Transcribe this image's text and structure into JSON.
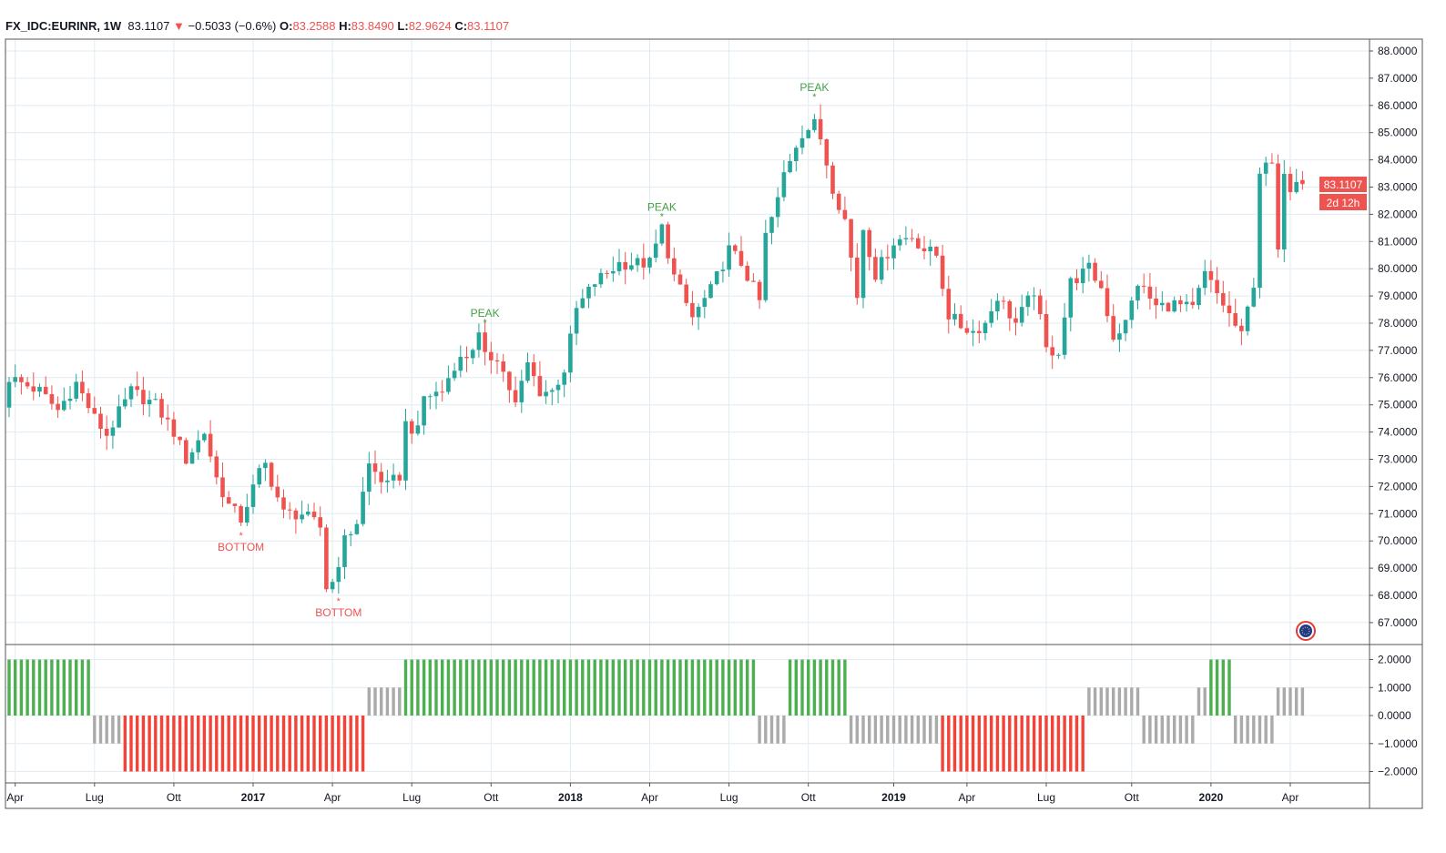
{
  "header": {
    "symbol": "FX_IDC:EURINR, 1W",
    "last": "83.1107",
    "change": "−0.5033 (−0.6%)",
    "o_label": "O:",
    "o": "83.2588",
    "h_label": "H:",
    "h": "83.8490",
    "l_label": "L:",
    "l": "82.9624",
    "c_label": "C:",
    "c": "83.1107"
  },
  "price_badge": "83.1107",
  "countdown_badge": "2d 12h",
  "colors": {
    "up": "#26a69a",
    "down": "#ef5350",
    "osc_green": "#4caf50",
    "osc_gray": "#aaaaaa",
    "osc_red": "#f44336",
    "grid": "#e0ecf2"
  },
  "chart_data": {
    "type": "candlestick",
    "xlabel": "",
    "ylabel": "",
    "ylim": [
      66.5,
      88.3
    ],
    "y_ticks": [
      "88.0000",
      "87.0000",
      "86.0000",
      "85.0000",
      "84.0000",
      "83.0000",
      "82.0000",
      "81.0000",
      "80.0000",
      "79.0000",
      "78.0000",
      "77.0000",
      "76.0000",
      "75.0000",
      "74.0000",
      "73.0000",
      "72.0000",
      "71.0000",
      "70.0000",
      "69.0000",
      "68.0000",
      "67.0000"
    ],
    "weeks": 213,
    "close_waypoints_week_price": [
      [
        0,
        75.2
      ],
      [
        1,
        76.0
      ],
      [
        6,
        75.5
      ],
      [
        9,
        74.8
      ],
      [
        12,
        75.8
      ],
      [
        15,
        74.5
      ],
      [
        17,
        73.9
      ],
      [
        21,
        75.5
      ],
      [
        25,
        75.0
      ],
      [
        28,
        74.0
      ],
      [
        30,
        73.0
      ],
      [
        33,
        74.0
      ],
      [
        35,
        72.3
      ],
      [
        37,
        71.3
      ],
      [
        39,
        70.8
      ],
      [
        42,
        72.5
      ],
      [
        43,
        72.8
      ],
      [
        46,
        71.0
      ],
      [
        49,
        71.0
      ],
      [
        52,
        70.5
      ],
      [
        53,
        68.3
      ],
      [
        54,
        68.5
      ],
      [
        56,
        70.0
      ],
      [
        58,
        70.7
      ],
      [
        60,
        72.8
      ],
      [
        63,
        72.0
      ],
      [
        65,
        72.4
      ],
      [
        66,
        74.3
      ],
      [
        68,
        74.0
      ],
      [
        69,
        75.3
      ],
      [
        72,
        75.5
      ],
      [
        74,
        76.5
      ],
      [
        76,
        76.8
      ],
      [
        78,
        77.5
      ],
      [
        79,
        76.7
      ],
      [
        81,
        76.8
      ],
      [
        84,
        75.0
      ],
      [
        86,
        76.5
      ],
      [
        88,
        75.5
      ],
      [
        90,
        75.5
      ],
      [
        92,
        76.3
      ],
      [
        94,
        78.5
      ],
      [
        97,
        79.5
      ],
      [
        101,
        80.2
      ],
      [
        106,
        80.2
      ],
      [
        108,
        81.5
      ],
      [
        110,
        79.7
      ],
      [
        113,
        78.2
      ],
      [
        116,
        79.2
      ],
      [
        119,
        80.7
      ],
      [
        121,
        80.2
      ],
      [
        124,
        78.8
      ],
      [
        125,
        81.2
      ],
      [
        127,
        82.5
      ],
      [
        128,
        83.5
      ],
      [
        130,
        84.6
      ],
      [
        131,
        85.0
      ],
      [
        133,
        85.3
      ],
      [
        134,
        84.8
      ],
      [
        136,
        83.0
      ],
      [
        138,
        81.8
      ],
      [
        140,
        79.0
      ],
      [
        141,
        81.5
      ],
      [
        143,
        79.8
      ],
      [
        146,
        81.0
      ],
      [
        149,
        81.2
      ],
      [
        151,
        80.7
      ],
      [
        153,
        80.5
      ],
      [
        155,
        78.3
      ],
      [
        157,
        77.9
      ],
      [
        159,
        77.7
      ],
      [
        161,
        78.0
      ],
      [
        163,
        79.0
      ],
      [
        166,
        78.0
      ],
      [
        169,
        79.2
      ],
      [
        171,
        77.0
      ],
      [
        173,
        77.0
      ],
      [
        175,
        79.5
      ],
      [
        178,
        80.0
      ],
      [
        180,
        79.3
      ],
      [
        182,
        77.5
      ],
      [
        184,
        78.0
      ],
      [
        186,
        79.5
      ],
      [
        189,
        78.6
      ],
      [
        192,
        78.7
      ],
      [
        195,
        78.5
      ],
      [
        197,
        79.8
      ],
      [
        200,
        78.7
      ],
      [
        203,
        77.5
      ],
      [
        205,
        79.5
      ],
      [
        206,
        83.6
      ],
      [
        208,
        83.8
      ],
      [
        209,
        80.5
      ],
      [
        210,
        83.7
      ],
      [
        211,
        83.0
      ],
      [
        212,
        83.4
      ],
      [
        213,
        83.11
      ]
    ],
    "annotations": [
      {
        "label": "BOTTOM",
        "week": 38,
        "price": 70.4,
        "type": "bottom"
      },
      {
        "label": "BOTTOM",
        "week": 54,
        "price": 68.0,
        "type": "bottom"
      },
      {
        "label": "PEAK",
        "week": 78,
        "price": 77.9,
        "type": "peak"
      },
      {
        "label": "PEAK",
        "week": 107,
        "price": 81.8,
        "type": "peak"
      },
      {
        "label": "PEAK",
        "week": 132,
        "price": 86.2,
        "type": "peak"
      }
    ],
    "x_ticks": [
      {
        "label": "Apr",
        "week": 1,
        "bold": false
      },
      {
        "label": "Lug",
        "week": 14,
        "bold": false
      },
      {
        "label": "Ott",
        "week": 27,
        "bold": false
      },
      {
        "label": "2017",
        "week": 40,
        "bold": true
      },
      {
        "label": "Apr",
        "week": 53,
        "bold": false
      },
      {
        "label": "Lug",
        "week": 66,
        "bold": false
      },
      {
        "label": "Ott",
        "week": 79,
        "bold": false
      },
      {
        "label": "2018",
        "week": 92,
        "bold": true
      },
      {
        "label": "Apr",
        "week": 105,
        "bold": false
      },
      {
        "label": "Lug",
        "week": 118,
        "bold": false
      },
      {
        "label": "Ott",
        "week": 131,
        "bold": false
      },
      {
        "label": "2019",
        "week": 145,
        "bold": true
      },
      {
        "label": "Apr",
        "week": 157,
        "bold": false
      },
      {
        "label": "Lug",
        "week": 170,
        "bold": false
      },
      {
        "label": "Ott",
        "week": 184,
        "bold": false
      },
      {
        "label": "2020",
        "week": 197,
        "bold": true
      },
      {
        "label": "Apr",
        "week": 210,
        "bold": false
      }
    ],
    "oscillator": {
      "ylim": [
        -2.3,
        2.3
      ],
      "y_ticks": [
        "2.0000",
        "1.0000",
        "0.0000",
        "−1.0000",
        "−2.0000"
      ],
      "segments": [
        {
          "from": 0,
          "to": 13,
          "value": 2,
          "color": "green"
        },
        {
          "from": 14,
          "to": 18,
          "value": -1,
          "color": "gray"
        },
        {
          "from": 19,
          "to": 58,
          "value": -2,
          "color": "red"
        },
        {
          "from": 59,
          "to": 64,
          "value": 1,
          "color": "gray"
        },
        {
          "from": 65,
          "to": 122,
          "value": 2,
          "color": "green"
        },
        {
          "from": 123,
          "to": 127,
          "value": -1,
          "color": "gray"
        },
        {
          "from": 128,
          "to": 137,
          "value": 2,
          "color": "green"
        },
        {
          "from": 138,
          "to": 152,
          "value": -1,
          "color": "gray"
        },
        {
          "from": 153,
          "to": 176,
          "value": -2,
          "color": "red"
        },
        {
          "from": 177,
          "to": 185,
          "value": 1,
          "color": "gray"
        },
        {
          "from": 186,
          "to": 194,
          "value": -1,
          "color": "gray"
        },
        {
          "from": 195,
          "to": 196,
          "value": 1,
          "color": "gray"
        },
        {
          "from": 197,
          "to": 200,
          "value": 2,
          "color": "green"
        },
        {
          "from": 201,
          "to": 207,
          "value": -1,
          "color": "gray"
        },
        {
          "from": 208,
          "to": 212,
          "value": 1,
          "color": "gray"
        }
      ]
    }
  }
}
